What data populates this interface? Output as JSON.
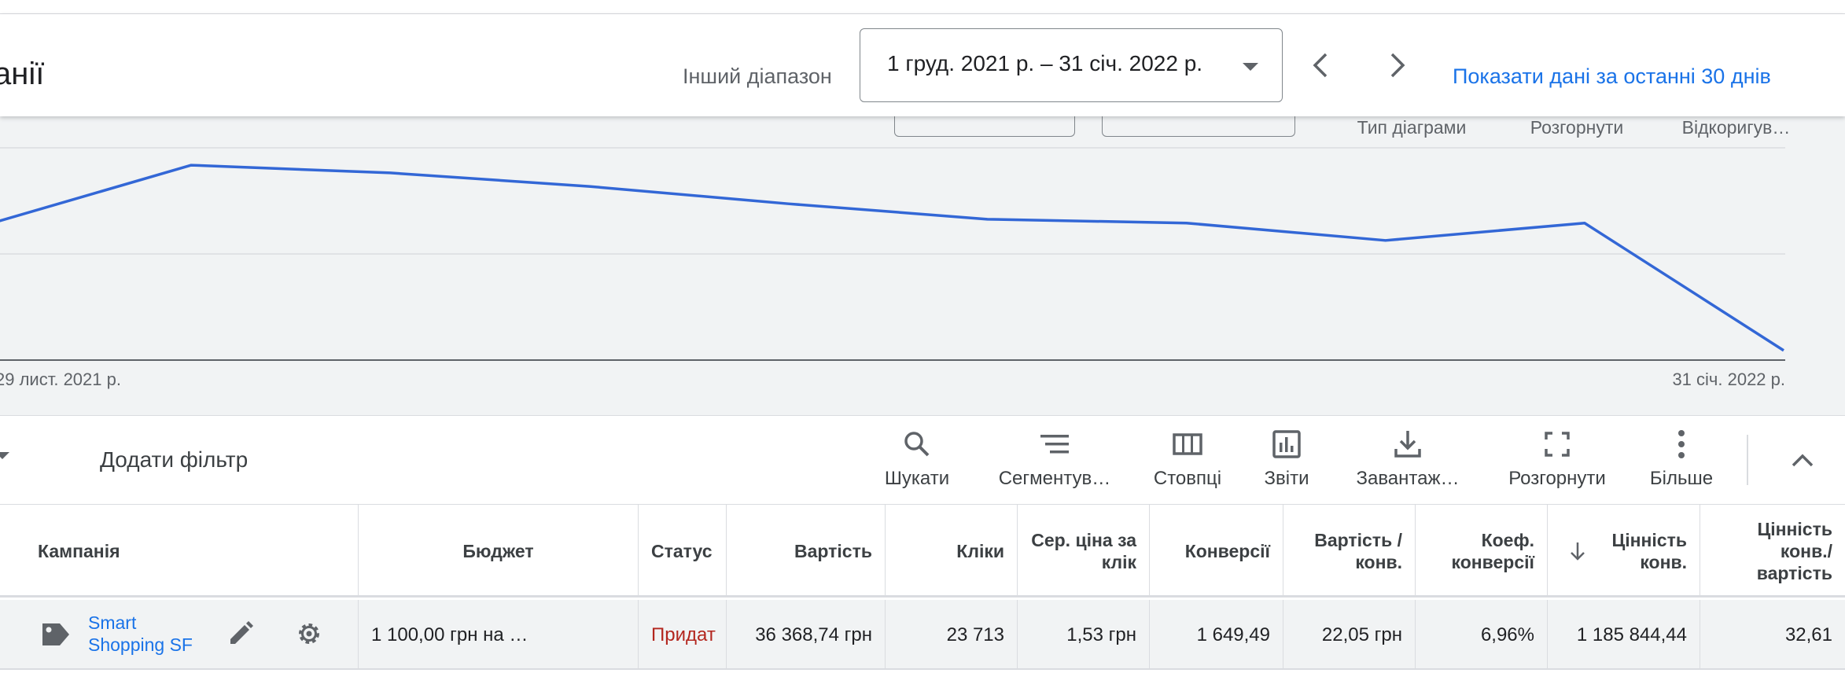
{
  "header": {
    "title": "анії",
    "range_label": "Інший діапазон",
    "date_range": "1 груд. 2021 р. – 31 січ. 2022 р.",
    "last_30_days_link": "Показати дані за останні 30 днів"
  },
  "chart_tools": {
    "chart_type": "Тип діаграми",
    "expand": "Розгорнути",
    "adjust": "Відкоригув…"
  },
  "chart_data": {
    "type": "line",
    "x_start_label": "29 лист. 2021 р.",
    "x_end_label": "31 січ. 2022 р.",
    "x": [
      "29 лист. 2021 р.",
      "",
      "",
      "",
      "",
      "",
      "",
      "",
      "",
      "31 січ. 2022 р."
    ],
    "series": [
      {
        "color": "#3367d6",
        "values": [
          71,
          101,
          97,
          90,
          81,
          73,
          71,
          62,
          71,
          5
        ]
      }
    ],
    "ylim": [
      0,
      110
    ],
    "grid": true
  },
  "toolbar": {
    "add_filter": "Додати фільтр",
    "search": "Шукати",
    "segment": "Сегментув…",
    "columns": "Стовпці",
    "reports": "Звіти",
    "download": "Завантаж…",
    "expand": "Розгорнути",
    "more": "Більше"
  },
  "table": {
    "headers": {
      "campaign": "Кампанія",
      "budget": "Бюджет",
      "status": "Статус",
      "cost": "Вартість",
      "clicks": "Кліки",
      "avg_cpc": "Сер. ціна за клік",
      "conversions": "Конверсії",
      "cost_per_conv": "Вартість / конв.",
      "conv_rate": "Коеф. конверсії",
      "conv_value": "Цінність конв.",
      "value_per_cost": "Цінність конв./ вартість"
    },
    "rows": [
      {
        "campaign": "Smart Shopping SF",
        "budget": "1 100,00 грн на …",
        "status": "Придат",
        "cost": "36 368,74 грн",
        "clicks": "23 713",
        "avg_cpc": "1,53 грн",
        "conversions": "1 649,49",
        "cost_per_conv": "22,05 грн",
        "conv_rate": "6,96%",
        "conv_value": "1 185 844,44",
        "value_per_cost": "32,61"
      }
    ]
  }
}
